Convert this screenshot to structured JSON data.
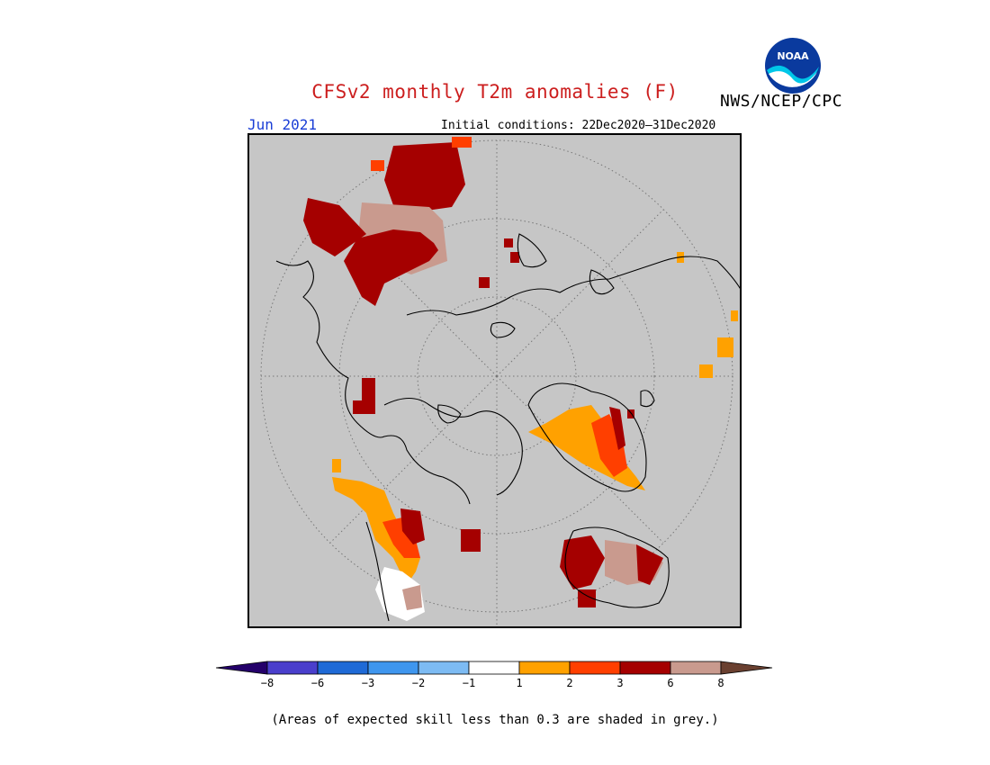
{
  "title": "CFSv2 monthly T2m anomalies (F)",
  "organization": "NWS/NCEP/CPC",
  "logo_text": "NOAA",
  "month_label": "Jun 2021",
  "initial_conditions": "Initial conditions: 22Dec2020–31Dec2020",
  "footnote": "(Areas of expected skill less than 0.3 are shaded in grey.)",
  "colorbar": {
    "colors": [
      "#24006a",
      "#4a3fcc",
      "#1f6ad6",
      "#3f96ee",
      "#7dbbf3",
      "#ffffff",
      "#ffa100",
      "#ff3f00",
      "#a50000",
      "#c99a8e",
      "#6a4030"
    ],
    "ticks": [
      "−8",
      "−6",
      "−3",
      "−2",
      "−1",
      "1",
      "2",
      "3",
      "6",
      "8"
    ]
  },
  "colors": {
    "title": "#cc1e1e",
    "month": "#1a3ed6",
    "map_background": "#c6c6c6",
    "coast": "#000000"
  }
}
